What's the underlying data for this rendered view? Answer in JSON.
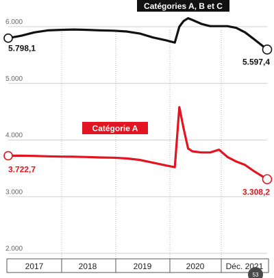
{
  "chart_data": {
    "type": "line",
    "x": [
      "2017-01",
      "2017-04",
      "2017-07",
      "2017-10",
      "2018-01",
      "2018-04",
      "2018-07",
      "2018-10",
      "2019-01",
      "2019-04",
      "2019-07",
      "2019-10",
      "2020-01",
      "2020-03",
      "2020-04",
      "2020-05",
      "2020-06",
      "2020-07",
      "2020-09",
      "2020-11",
      "2021-01",
      "2021-03",
      "2021-05",
      "2021-07",
      "2021-09",
      "2021-12"
    ],
    "series": [
      {
        "name": "Catégories A, B et C",
        "color": "#111111",
        "values": [
          5798.1,
          5840,
          5900,
          5935,
          5945,
          5950,
          5945,
          5935,
          5930,
          5915,
          5880,
          5810,
          5760,
          5720,
          6000,
          6100,
          6150,
          6120,
          6050,
          6010,
          6010,
          6010,
          5980,
          5900,
          5780,
          5597.4
        ]
      },
      {
        "name": "Catégorie A",
        "color": "#e2141f",
        "values": [
          3722.7,
          3725,
          3720,
          3712,
          3708,
          3705,
          3700,
          3692,
          3688,
          3675,
          3650,
          3600,
          3550,
          3520,
          4580,
          4200,
          3850,
          3800,
          3780,
          3780,
          3830,
          3700,
          3620,
          3560,
          3450,
          3308.2
        ]
      }
    ],
    "start_label": {
      "black": "5.798,1",
      "red": "3.722,7"
    },
    "end_label": {
      "black": "5.597,4",
      "red": "3.308,2"
    },
    "ylim": [
      2000,
      6500
    ],
    "yticks": [
      {
        "value": 2000,
        "label": "2.000"
      },
      {
        "value": 3000,
        "label": "3.000"
      },
      {
        "value": 4000,
        "label": "4.000"
      },
      {
        "value": 5000,
        "label": "5.000"
      },
      {
        "value": 6000,
        "label": "6.000"
      }
    ],
    "xticks": [
      "2017",
      "2018",
      "2019",
      "2020",
      "Déc. 2021"
    ],
    "grid": true
  },
  "corner_badge": {
    "label": "53",
    "color": "#4a4a4a"
  }
}
